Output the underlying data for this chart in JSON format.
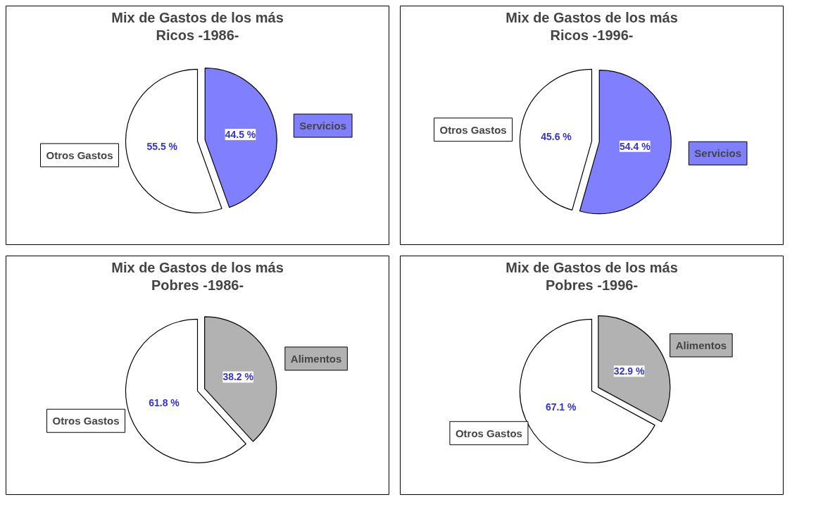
{
  "chart_data": [
    {
      "type": "pie",
      "title": "Mix de Gastos de los más Ricos -1986-",
      "categories": [
        "Otros Gastos",
        "Servicios"
      ],
      "values": [
        55.5,
        44.5
      ],
      "colors": [
        "#ffffff",
        "#8080ff"
      ],
      "value_labels": [
        "55.5 %",
        "44.5 %"
      ],
      "legend": false
    },
    {
      "type": "pie",
      "title": "Mix de Gastos de los más Ricos -1996-",
      "categories": [
        "Otros Gastos",
        "Servicios"
      ],
      "values": [
        45.6,
        54.4
      ],
      "colors": [
        "#ffffff",
        "#8080ff"
      ],
      "value_labels": [
        "45.6 %",
        "54.4 %"
      ],
      "legend": false
    },
    {
      "type": "pie",
      "title": "Mix de Gastos de los más Pobres -1986-",
      "categories": [
        "Otros Gastos",
        "Alimentos"
      ],
      "values": [
        61.8,
        38.2
      ],
      "colors": [
        "#ffffff",
        "#b2b2b2"
      ],
      "value_labels": [
        "61.8 %",
        "38.2 %"
      ],
      "legend": false
    },
    {
      "type": "pie",
      "title": "Mix de Gastos de los más Pobres -1996-",
      "categories": [
        "Otros Gastos",
        "Alimentos"
      ],
      "values": [
        67.1,
        32.9
      ],
      "colors": [
        "#ffffff",
        "#b2b2b2"
      ],
      "value_labels": [
        "67.1 %",
        "32.9 %"
      ],
      "legend": false
    }
  ]
}
